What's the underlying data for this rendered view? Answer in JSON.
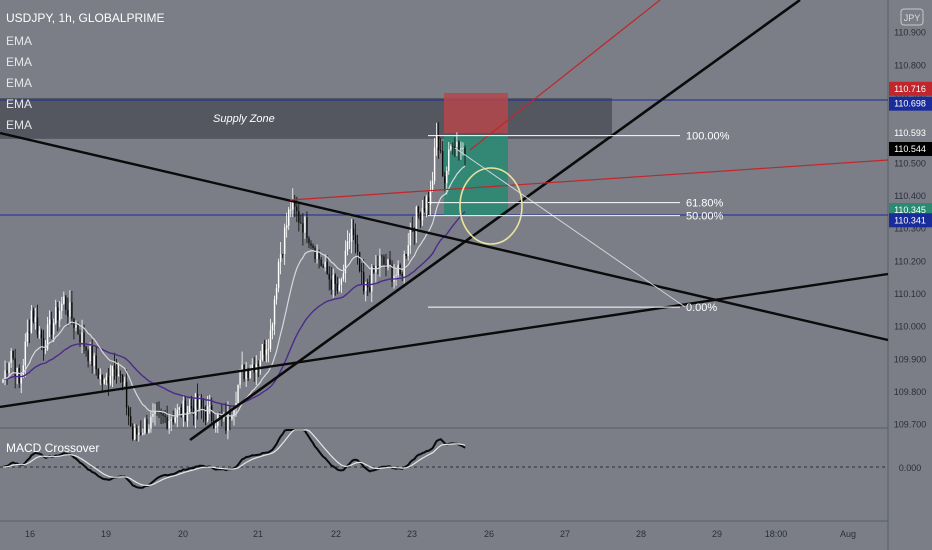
{
  "header": {
    "symbol": "USDJPY, 1h, GLOBALPRIME",
    "indicators": [
      "EMA",
      "EMA",
      "EMA",
      "EMA",
      "EMA"
    ],
    "currency_button": "JPY"
  },
  "supply_zone": {
    "label": "Supply Zone",
    "top": 110.7,
    "bottom": 110.575
  },
  "fib_levels": [
    {
      "label": "100.00%",
      "price": 110.585
    },
    {
      "label": "61.80%",
      "price": 110.38
    },
    {
      "label": "50.00%",
      "price": 110.34
    },
    {
      "label": "0.00%",
      "price": 110.06
    }
  ],
  "macd": {
    "title": "MACD Crossover",
    "zero_label": "0.000"
  },
  "colors": {
    "background": "#7b7e87",
    "up": "#ffffff",
    "down": "#0b0b0b",
    "blue_line": "#1a2b9a",
    "red_line": "#c0262c",
    "purple_ema": "#4c2b8a",
    "stop_zone": "#b4474c",
    "target_zone": "#2a8a72",
    "circle": "#e9e4a0"
  },
  "chart_data": {
    "type": "candlestick",
    "title": "",
    "y_range": [
      109.69,
      111.0
    ],
    "price_ticks": [
      "111.000",
      "110.900",
      "110.800",
      "110.700",
      "110.600",
      "110.500",
      "110.400",
      "110.300",
      "110.200",
      "110.100",
      "110.000",
      "109.900",
      "109.800",
      "109.700"
    ],
    "price_tags": [
      {
        "label": "110.716",
        "price": 110.716,
        "color": "#c0262c"
      },
      {
        "label": "110.698",
        "price": 110.698,
        "color": "#1a2b9a"
      },
      {
        "label": "110.593",
        "price": 110.593,
        "color": "#7b7e87"
      },
      {
        "label": "110.544",
        "price": 110.544,
        "color": "#000000"
      },
      {
        "label": "110.345",
        "price": 110.345,
        "color": "#2a8a72"
      },
      {
        "label": "110.341",
        "price": 110.341,
        "color": "#1a2b9a"
      }
    ],
    "x_ticks": [
      "16",
      "19",
      "20",
      "21",
      "22",
      "23",
      "26",
      "27",
      "28",
      "29",
      "18:00",
      "Aug"
    ],
    "anchors": [
      [
        0,
        109.84
      ],
      [
        4,
        109.93
      ],
      [
        8,
        109.82
      ],
      [
        14,
        110.05
      ],
      [
        20,
        109.95
      ],
      [
        30,
        110.08
      ],
      [
        40,
        109.95
      ],
      [
        50,
        109.82
      ],
      [
        55,
        109.9
      ],
      [
        60,
        109.8
      ],
      [
        64,
        109.66
      ],
      [
        70,
        109.7
      ],
      [
        85,
        109.73
      ],
      [
        95,
        109.76
      ],
      [
        110,
        109.7
      ],
      [
        118,
        109.86
      ],
      [
        126,
        109.9
      ],
      [
        132,
        109.98
      ],
      [
        136,
        110.2
      ],
      [
        142,
        110.37
      ],
      [
        150,
        110.3
      ],
      [
        158,
        110.18
      ],
      [
        166,
        110.1
      ],
      [
        172,
        110.3
      ],
      [
        178,
        110.1
      ],
      [
        186,
        110.2
      ],
      [
        196,
        110.15
      ],
      [
        201,
        110.3
      ],
      [
        207,
        110.37
      ],
      [
        211,
        110.4
      ],
      [
        214,
        110.58
      ],
      [
        218,
        110.45
      ],
      [
        222,
        110.58
      ],
      [
        228,
        110.54
      ]
    ],
    "candle_count": 229
  }
}
